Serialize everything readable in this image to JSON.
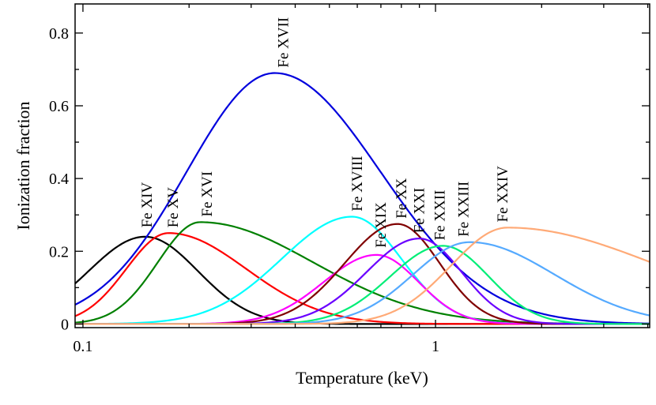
{
  "chart_data": {
    "type": "line",
    "title": "",
    "xlabel": "Temperature (keV)",
    "ylabel": "Ionization fraction",
    "xscale": "log",
    "xlim": [
      0.095,
      4.05
    ],
    "ylim": [
      -0.01,
      0.88
    ],
    "grid": false,
    "legend": "none",
    "xticks": [
      {
        "value": 0.1,
        "label": "0.1"
      },
      {
        "value": 1,
        "label": "1"
      }
    ],
    "yticks": [
      {
        "value": 0,
        "label": "0"
      },
      {
        "value": 0.2,
        "label": "0.2"
      },
      {
        "value": 0.4,
        "label": "0.4"
      },
      {
        "value": 0.6,
        "label": "0.6"
      },
      {
        "value": 0.8,
        "label": "0.8"
      }
    ],
    "series": [
      {
        "name": "Fe XIV",
        "color": "#000000",
        "peak_temperature": 0.15,
        "peak_fraction": 0.24,
        "width_left": 0.16,
        "width_right": 0.15,
        "label_temperature": 0.152,
        "label_fraction": 0.265
      },
      {
        "name": "Fe XV",
        "color": "#ff0000",
        "peak_temperature": 0.175,
        "peak_fraction": 0.25,
        "width_left": 0.12,
        "width_right": 0.22,
        "label_temperature": 0.18,
        "label_fraction": 0.265
      },
      {
        "name": "Fe XVI",
        "color": "#008000",
        "peak_temperature": 0.215,
        "peak_fraction": 0.28,
        "width_left": 0.12,
        "width_right": 0.32,
        "label_temperature": 0.225,
        "label_fraction": 0.295
      },
      {
        "name": "Fe XVII",
        "color": "#0000dd",
        "peak_temperature": 0.35,
        "peak_fraction": 0.69,
        "width_left": 0.25,
        "width_right": 0.3,
        "label_temperature": 0.37,
        "label_fraction": 0.705
      },
      {
        "name": "Fe XVIII",
        "color": "#00ffff",
        "peak_temperature": 0.58,
        "peak_fraction": 0.295,
        "width_left": 0.2,
        "width_right": 0.14,
        "label_temperature": 0.6,
        "label_fraction": 0.31
      },
      {
        "name": "Fe XIX",
        "color": "#ff00ff",
        "peak_temperature": 0.68,
        "peak_fraction": 0.19,
        "width_left": 0.15,
        "width_right": 0.12,
        "label_temperature": 0.7,
        "label_fraction": 0.21
      },
      {
        "name": "Fe XX",
        "color": "#800000",
        "peak_temperature": 0.78,
        "peak_fraction": 0.275,
        "width_left": 0.15,
        "width_right": 0.12,
        "label_temperature": 0.8,
        "label_fraction": 0.29
      },
      {
        "name": "Fe XXI",
        "color": "#6a00ff",
        "peak_temperature": 0.9,
        "peak_fraction": 0.235,
        "width_left": 0.15,
        "width_right": 0.12,
        "label_temperature": 0.9,
        "label_fraction": 0.25
      },
      {
        "name": "Fe XXII",
        "color": "#00ee77",
        "peak_temperature": 1.05,
        "peak_fraction": 0.215,
        "width_left": 0.15,
        "width_right": 0.13,
        "label_temperature": 1.03,
        "label_fraction": 0.23
      },
      {
        "name": "Fe XXIII",
        "color": "#55aaff",
        "peak_temperature": 1.25,
        "peak_fraction": 0.225,
        "width_left": 0.16,
        "width_right": 0.24,
        "label_temperature": 1.2,
        "label_fraction": 0.24
      },
      {
        "name": "Fe XXIV",
        "color": "#ffaa77",
        "peak_temperature": 1.6,
        "peak_fraction": 0.265,
        "width_left": 0.16,
        "width_right": 0.43,
        "label_temperature": 1.55,
        "label_fraction": 0.28
      }
    ]
  }
}
